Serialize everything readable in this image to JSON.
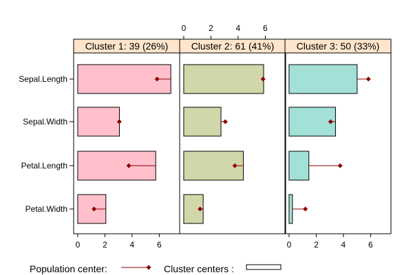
{
  "chart_data": {
    "type": "bar",
    "orientation": "horizontal",
    "layout": "trellis",
    "categories": [
      "Sepal.Length",
      "Sepal.Width",
      "Petal.Length",
      "Petal.Width"
    ],
    "xlim": [
      -0.3,
      7.5
    ],
    "x_ticks": [
      0,
      2,
      4,
      6
    ],
    "panels": [
      {
        "name": "Cluster 1: 39 (26%)",
        "color": "#FFC0CB",
        "values": [
          6.85,
          3.07,
          5.74,
          2.07
        ],
        "population_center": [
          5.84,
          3.06,
          3.76,
          1.2
        ]
      },
      {
        "name": "Cluster 2: 61 (41%)",
        "color": "#D2D7A9",
        "values": [
          5.88,
          2.74,
          4.39,
          1.43
        ],
        "population_center": [
          5.84,
          3.06,
          3.76,
          1.2
        ]
      },
      {
        "name": "Cluster 3: 50 (33%)",
        "color": "#A3E0D8",
        "values": [
          5.01,
          3.42,
          1.46,
          0.25
        ],
        "population_center": [
          5.84,
          3.06,
          3.76,
          1.2
        ]
      }
    ],
    "legend": {
      "population_label": "Population center:",
      "cluster_label": "Cluster centers :"
    },
    "colors": {
      "strip": "#FFE5CC",
      "marker": "#8B0000",
      "bar_edge": "#000000"
    }
  }
}
